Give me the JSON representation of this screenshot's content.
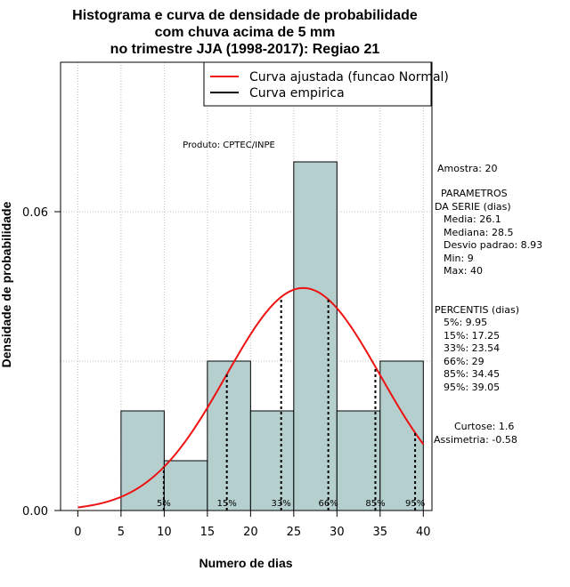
{
  "chart_data": {
    "type": "bar",
    "title_lines": [
      "Histograma e curva de densidade de probabilidade",
      "com chuva acima de 5 mm",
      "no trimestre JJA (1998-2017): Regiao 21"
    ],
    "xlabel": "Numero de dias",
    "ylabel": "Densidade de probabilidade",
    "xlim": [
      -2,
      41
    ],
    "ylim": [
      0,
      0.09
    ],
    "x_ticks": [
      0,
      5,
      10,
      15,
      20,
      25,
      30,
      35,
      40
    ],
    "x_tick_labels": [
      "0",
      "5",
      "10",
      "15",
      "20",
      "25",
      "30",
      "35",
      "40"
    ],
    "y_ticks": [
      0.0,
      0.06
    ],
    "y_tick_labels": [
      "0.00",
      "0.06"
    ],
    "bins": [
      {
        "start": 5,
        "end": 10,
        "density": 0.02
      },
      {
        "start": 10,
        "end": 15,
        "density": 0.01
      },
      {
        "start": 15,
        "end": 20,
        "density": 0.03
      },
      {
        "start": 20,
        "end": 25,
        "density": 0.02
      },
      {
        "start": 25,
        "end": 30,
        "density": 0.07
      },
      {
        "start": 30,
        "end": 35,
        "density": 0.02
      },
      {
        "start": 35,
        "end": 40,
        "density": 0.03
      }
    ],
    "normal_fit": {
      "mean": 26.1,
      "sd": 8.93,
      "x_range": [
        0,
        40
      ]
    },
    "percentiles": [
      {
        "label": "5%",
        "value": 9.95
      },
      {
        "label": "15%",
        "value": 17.25
      },
      {
        "label": "33%",
        "value": 23.54
      },
      {
        "label": "66%",
        "value": 29
      },
      {
        "label": "85%",
        "value": 34.45
      },
      {
        "label": "95%",
        "value": 39.05
      }
    ],
    "legend": [
      {
        "label": "Curva ajustada (funcao Normal)",
        "color": "#ee1111"
      },
      {
        "label": "Curva empirica",
        "color": "#000000"
      }
    ],
    "credit": "Produto: CPTEC/INPE",
    "bar_color": "#b5cfcf",
    "curve_color": "#ee1111",
    "grid": true
  },
  "stats_panel": {
    "sample": "Amostra: 20",
    "params_title_1": "PARAMETROS",
    "params_title_2": "DA SERIE (dias)",
    "media": "Media: 26.1",
    "mediana": "Mediana: 28.5",
    "desvio": "Desvio padrao: 8.93",
    "min": "Min: 9",
    "max": "Max: 40",
    "percentis_title": "PERCENTIS (dias)",
    "p5": "5%: 9.95",
    "p15": "15%: 17.25",
    "p33": "33%: 23.54",
    "p66": "66%: 29",
    "p85": "85%: 34.45",
    "p95": "95%: 39.05",
    "curtose": "Curtose: 1.6",
    "assimetria": "Assimetria: -0.58"
  }
}
